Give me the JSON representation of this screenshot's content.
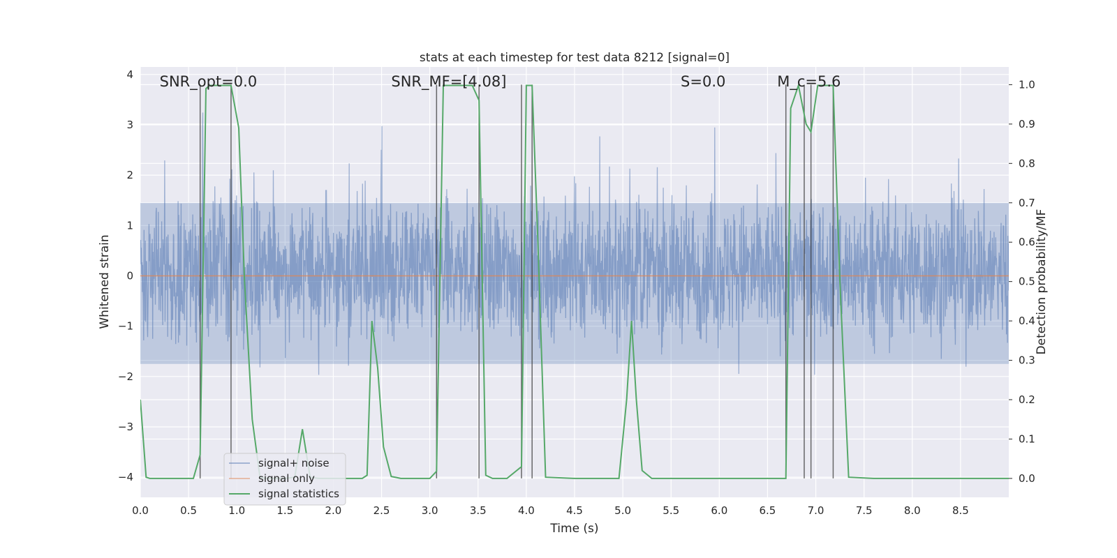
{
  "chart_data": {
    "type": "line",
    "title": "stats at each timestep for test data 8212 [signal=0]",
    "xlabel": "Time (s)",
    "ylabel": "Whitened strain",
    "y2label": "Detection probability/MF",
    "xlim": [
      0.0,
      9.0
    ],
    "ylim": [
      -4.4,
      4.15
    ],
    "y2lim": [
      -0.048,
      1.045
    ],
    "xticks": [
      "0.0",
      "0.5",
      "1.0",
      "1.5",
      "2.0",
      "2.5",
      "3.0",
      "3.5",
      "4.0",
      "4.5",
      "5.0",
      "5.5",
      "6.0",
      "6.5",
      "7.0",
      "7.5",
      "8.0",
      "8.5"
    ],
    "yticks": [
      "4",
      "3",
      "2",
      "1",
      "0",
      "−1",
      "−2",
      "−3",
      "−4"
    ],
    "y2ticks": [
      "1.0",
      "0.9",
      "0.8",
      "0.7",
      "0.6",
      "0.5",
      "0.4",
      "0.3",
      "0.2",
      "0.1",
      "0.0"
    ],
    "grid": true,
    "legend_position": "lower-left",
    "annotations": [
      {
        "id": "snr-opt",
        "label": "SNR_opt=0.0",
        "x": 0.2
      },
      {
        "id": "snr-mf",
        "label": "SNR_MF=[4.08]",
        "x": 2.6
      },
      {
        "id": "s",
        "label": "S=0.0",
        "x": 5.6
      },
      {
        "id": "mc",
        "label": "M_c=5.6",
        "x": 6.6
      }
    ],
    "event_lines_x": [
      0.62,
      0.94,
      3.07,
      3.51,
      3.95,
      4.06,
      6.69,
      6.88,
      6.95,
      7.18
    ],
    "series": [
      {
        "name": "signal+ noise",
        "color": "#4c72b0",
        "description": "noise strain, roughly in [-2.5, 3.6] with peaks to ±4",
        "samples": 2600,
        "amplitude_band": [
          -1.75,
          1.45
        ]
      },
      {
        "name": "signal only",
        "color": "#dd8452",
        "x": [
          0.0,
          9.0
        ],
        "y": [
          0.0,
          0.0
        ]
      },
      {
        "name": "signal statistics",
        "color": "#55a868",
        "axis": "right",
        "x": [
          0.0,
          0.06,
          0.1,
          0.2,
          0.3,
          0.4,
          0.55,
          0.62,
          0.68,
          0.72,
          0.8,
          0.94,
          1.02,
          1.08,
          1.16,
          1.24,
          1.3,
          1.4,
          1.5,
          1.6,
          1.68,
          1.76,
          1.85,
          2.0,
          2.1,
          2.3,
          2.35,
          2.4,
          2.46,
          2.52,
          2.6,
          2.7,
          2.9,
          3.0,
          3.07,
          3.14,
          3.3,
          3.44,
          3.51,
          3.58,
          3.65,
          3.8,
          3.95,
          4.0,
          4.06,
          4.12,
          4.2,
          4.5,
          4.8,
          4.96,
          5.04,
          5.09,
          5.14,
          5.2,
          5.3,
          5.6,
          6.0,
          6.5,
          6.69,
          6.74,
          6.82,
          6.9,
          6.95,
          7.02,
          7.18,
          7.25,
          7.34,
          7.6,
          8.0,
          8.5,
          9.0
        ],
        "y": [
          0.2,
          0.003,
          0.0,
          0.0,
          0.0,
          0.0,
          0.0,
          0.06,
          0.99,
          0.998,
          0.998,
          0.998,
          0.89,
          0.5,
          0.15,
          0.003,
          0.0,
          0.0,
          0.0,
          0.003,
          0.125,
          0.003,
          0.0,
          0.0,
          0.0,
          0.0,
          0.008,
          0.4,
          0.28,
          0.08,
          0.005,
          0.0,
          0.0,
          0.0,
          0.018,
          0.998,
          0.998,
          0.998,
          0.96,
          0.008,
          0.0,
          0.0,
          0.03,
          0.998,
          0.998,
          0.6,
          0.003,
          0.0,
          0.0,
          0.0,
          0.2,
          0.4,
          0.2,
          0.02,
          0.0,
          0.0,
          0.0,
          0.0,
          0.0,
          0.94,
          0.998,
          0.9,
          0.88,
          0.998,
          0.998,
          0.5,
          0.003,
          0.0,
          0.0,
          0.0,
          0.0
        ]
      }
    ]
  }
}
